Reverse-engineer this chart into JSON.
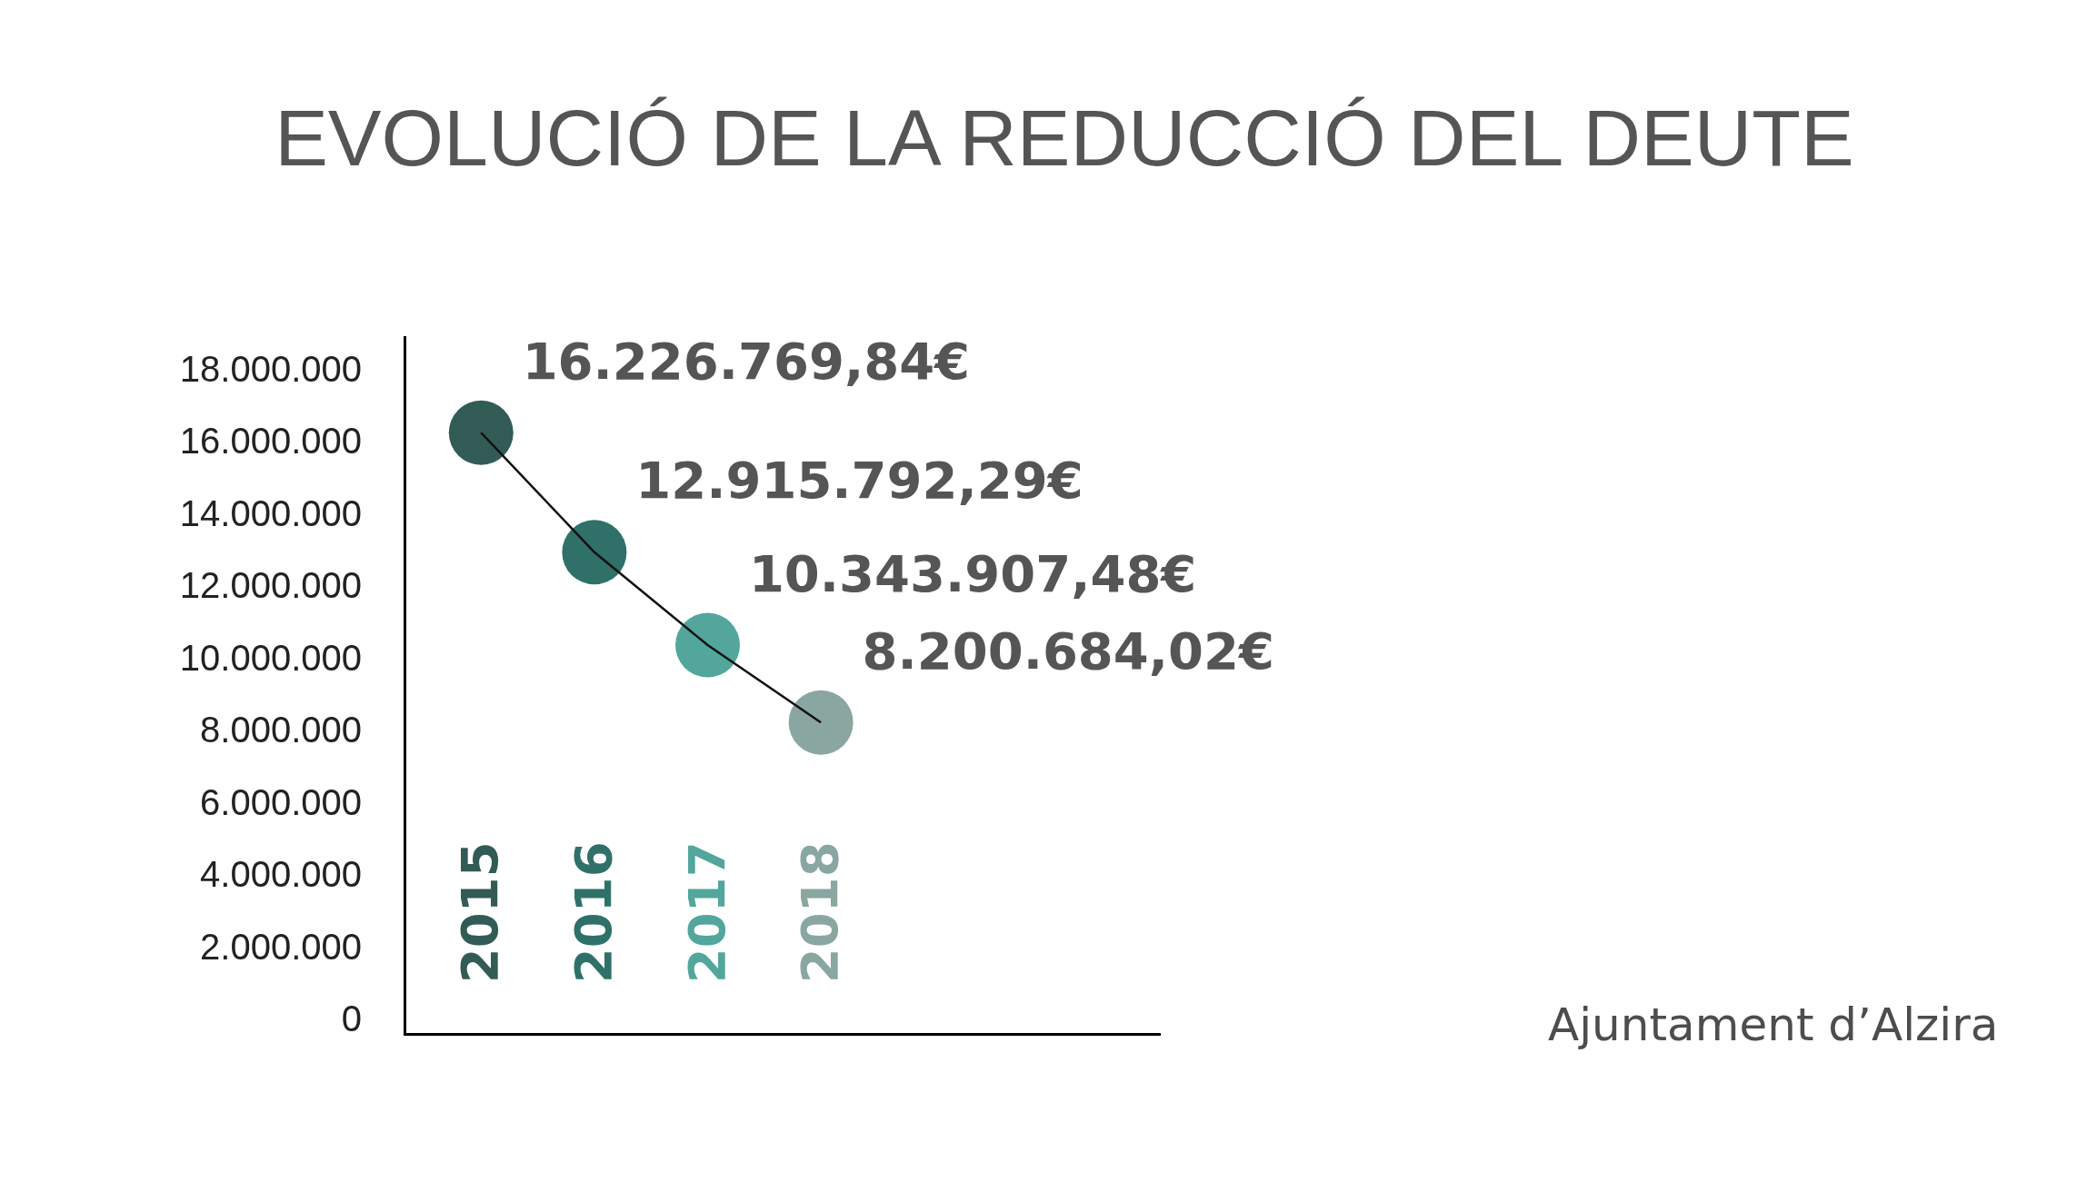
{
  "chart_data": {
    "type": "line",
    "title": "EVOLUCIÓ DE LA REDUCCIÓ DEL DEUTE",
    "categories": [
      "2015",
      "2016",
      "2017",
      "2018"
    ],
    "series": [
      {
        "type": "scatter",
        "colors": [
          "#335b55",
          "#2f7169",
          "#52a69c",
          "#8aa6a0"
        ],
        "values": [
          16226769.84,
          12915792.29,
          10343907.48,
          8200684.02
        ],
        "value_labels": [
          "16.226.769,84€",
          "12.915.792,29€",
          "10.343.907,48€",
          "8.200.684,02€"
        ]
      },
      {
        "color": "#111111",
        "values": [
          16226769.84,
          12915792.29,
          10343907.48,
          8200684.02
        ]
      }
    ],
    "ylim": [
      -400000,
      18900000
    ],
    "yticks": [
      0,
      {
        "value": 2000000,
        "label": "2.000.000"
      },
      {
        "value": 4000000,
        "label": "4.000.000"
      },
      {
        "value": 6000000,
        "label": "6.000.000"
      },
      {
        "value": 8000000,
        "label": "8.000.000"
      },
      {
        "value": 10000000,
        "label": "10.000.000"
      },
      {
        "value": 12000000,
        "label": "12.000.000"
      },
      {
        "value": 14000000,
        "label": "14.000.000"
      },
      {
        "value": 16000000,
        "label": "16.000.000"
      },
      {
        "value": 18000000,
        "label": "18.000.000"
      }
    ],
    "line_style": "solid",
    "annotations": [
      "Ajuntament d’Alzira"
    ]
  }
}
